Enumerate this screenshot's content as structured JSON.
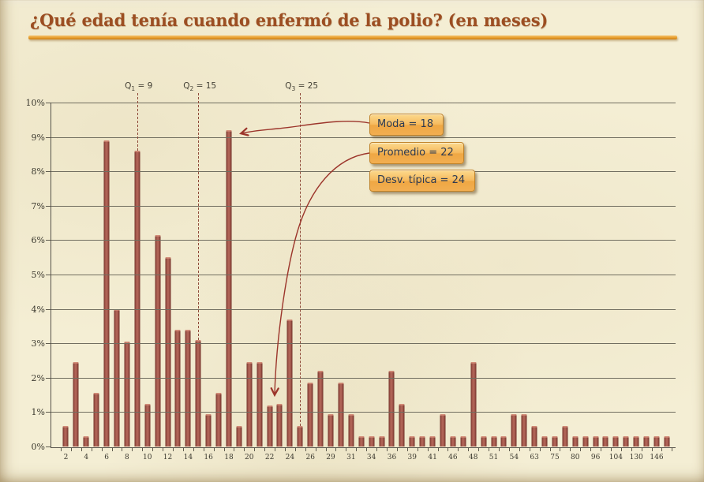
{
  "slide": {
    "title": "¿Qué edad tenía cuando enfermó de la polio? (en meses)"
  },
  "colors": {
    "background": "#f4eed4",
    "title_text": "#9c4e22",
    "title_underline": "#e79f30",
    "bar_fill": "#9e5348",
    "bar_edge": "#6e2f27",
    "gridline": "#716e60",
    "axis_text": "#3b392f",
    "dashed_quartile_line": "#8f4a3a",
    "arrow": "#9c352b",
    "callout_top": "#fcd98d",
    "callout_bottom": "#f2ae51",
    "callout_border": "#c0832a",
    "callout_text": "#2c3a52"
  },
  "chart_data": {
    "type": "bar",
    "title": "¿Qué edad tenía cuando enfermó de la polio? (en meses)",
    "xlabel": "",
    "ylabel": "",
    "ylim": [
      0,
      10
    ],
    "grid": true,
    "legend": false,
    "y_axis_ticks": [
      "10%",
      "9%",
      "8%",
      "7%",
      "6%",
      "5%",
      "4%",
      "3%",
      "2%",
      "1%",
      "0%"
    ],
    "categories": [
      "2",
      "",
      "4",
      "",
      "6",
      "",
      "8",
      "",
      "10",
      "",
      "12",
      "",
      "14",
      "",
      "16",
      "",
      "18",
      "",
      "20",
      "",
      "22",
      "",
      "24",
      "",
      "26",
      "",
      "29",
      "",
      "31",
      "",
      "34",
      "",
      "36",
      "",
      "39",
      "",
      "41",
      "",
      "46",
      "",
      "48",
      "",
      "51",
      "",
      "54",
      "",
      "63",
      "",
      "75",
      "",
      "80",
      "",
      "96",
      "",
      "104",
      "",
      "130",
      "",
      "146",
      ""
    ],
    "values": [
      0.6,
      2.45,
      0.3,
      1.55,
      8.9,
      4.0,
      3.05,
      8.6,
      1.25,
      6.15,
      5.5,
      3.4,
      3.4,
      3.1,
      0.95,
      1.55,
      9.2,
      0.6,
      2.45,
      2.45,
      1.2,
      1.25,
      3.7,
      0.6,
      1.85,
      2.2,
      0.95,
      1.85,
      0.95,
      0.3,
      0.3,
      0.3,
      2.2,
      1.25,
      0.3,
      0.3,
      0.3,
      0.95,
      0.3,
      0.3,
      2.45,
      0.3,
      0.3,
      0.3,
      0.95,
      0.95,
      0.6,
      0.3,
      0.3,
      0.6,
      0.3,
      0.3,
      0.3,
      0.3,
      0.3,
      0.3,
      0.3,
      0.3,
      0.3,
      0.3
    ],
    "quartile_lines": [
      {
        "base": "Q",
        "sub": "1",
        "rest": " = 9",
        "bar_index": 7
      },
      {
        "base": "Q",
        "sub": "2",
        "rest": " = 15",
        "bar_index": 13
      },
      {
        "base": "Q",
        "sub": "3",
        "rest": " = 25",
        "bar_index": 23
      }
    ],
    "annotations": [
      {
        "text": "Moda = 18",
        "target_bar_index": 16
      },
      {
        "text": "Promedio = 22",
        "target_bar_index": 20
      },
      {
        "text": "Desv. típica = 24",
        "target_bar_index": null
      }
    ]
  }
}
